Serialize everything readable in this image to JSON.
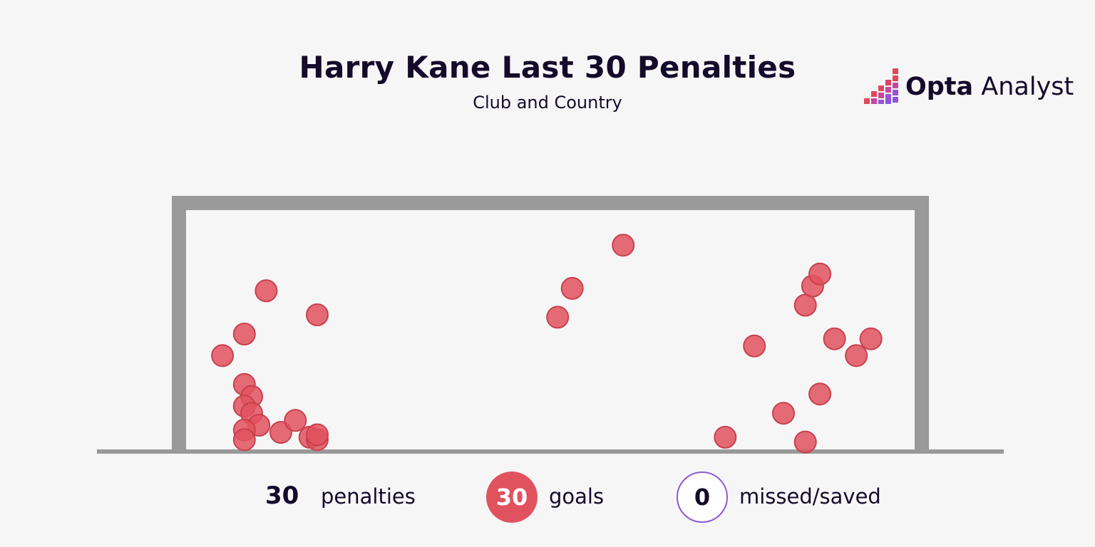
{
  "header": {
    "title": "Harry Kane Last 30 Penalties",
    "subtitle": "Club and Country"
  },
  "brand": {
    "name_bold": "Opta",
    "name_regular": " Analyst"
  },
  "legend": {
    "penalties_count": "30",
    "penalties_label": "penalties",
    "goals_count": "30",
    "goals_label": "goals",
    "missed_count": "0",
    "missed_label": "missed/saved"
  },
  "colors": {
    "goal": "#e0525e",
    "goal_stroke": "#c9404d",
    "frame": "#999999",
    "missed_ring": "#8d5ad0",
    "text": "#140a2a"
  },
  "chart_data": {
    "type": "scatter",
    "title": "Harry Kane Last 30 Penalties",
    "subtitle": "Club and Country",
    "xlabel": "",
    "ylabel": "",
    "xlim": [
      0,
      1
    ],
    "ylim": [
      0,
      1
    ],
    "grid": false,
    "series": [
      {
        "name": "goals",
        "points": [
          {
            "x": 0.05,
            "y": 0.37
          },
          {
            "x": 0.08,
            "y": 0.46
          },
          {
            "x": 0.11,
            "y": 0.64
          },
          {
            "x": 0.18,
            "y": 0.54
          },
          {
            "x": 0.08,
            "y": 0.25
          },
          {
            "x": 0.09,
            "y": 0.2
          },
          {
            "x": 0.08,
            "y": 0.16
          },
          {
            "x": 0.09,
            "y": 0.13
          },
          {
            "x": 0.1,
            "y": 0.08
          },
          {
            "x": 0.08,
            "y": 0.06
          },
          {
            "x": 0.08,
            "y": 0.02
          },
          {
            "x": 0.13,
            "y": 0.05
          },
          {
            "x": 0.15,
            "y": 0.1
          },
          {
            "x": 0.17,
            "y": 0.03
          },
          {
            "x": 0.18,
            "y": 0.02
          },
          {
            "x": 0.18,
            "y": 0.04
          },
          {
            "x": 0.51,
            "y": 0.53
          },
          {
            "x": 0.53,
            "y": 0.65
          },
          {
            "x": 0.6,
            "y": 0.83
          },
          {
            "x": 0.74,
            "y": 0.03
          },
          {
            "x": 0.78,
            "y": 0.41
          },
          {
            "x": 0.82,
            "y": 0.13
          },
          {
            "x": 0.85,
            "y": 0.01
          },
          {
            "x": 0.85,
            "y": 0.58
          },
          {
            "x": 0.86,
            "y": 0.66
          },
          {
            "x": 0.87,
            "y": 0.71
          },
          {
            "x": 0.87,
            "y": 0.21
          },
          {
            "x": 0.89,
            "y": 0.44
          },
          {
            "x": 0.92,
            "y": 0.37
          },
          {
            "x": 0.94,
            "y": 0.44
          }
        ]
      },
      {
        "name": "missed/saved",
        "points": []
      }
    ]
  }
}
